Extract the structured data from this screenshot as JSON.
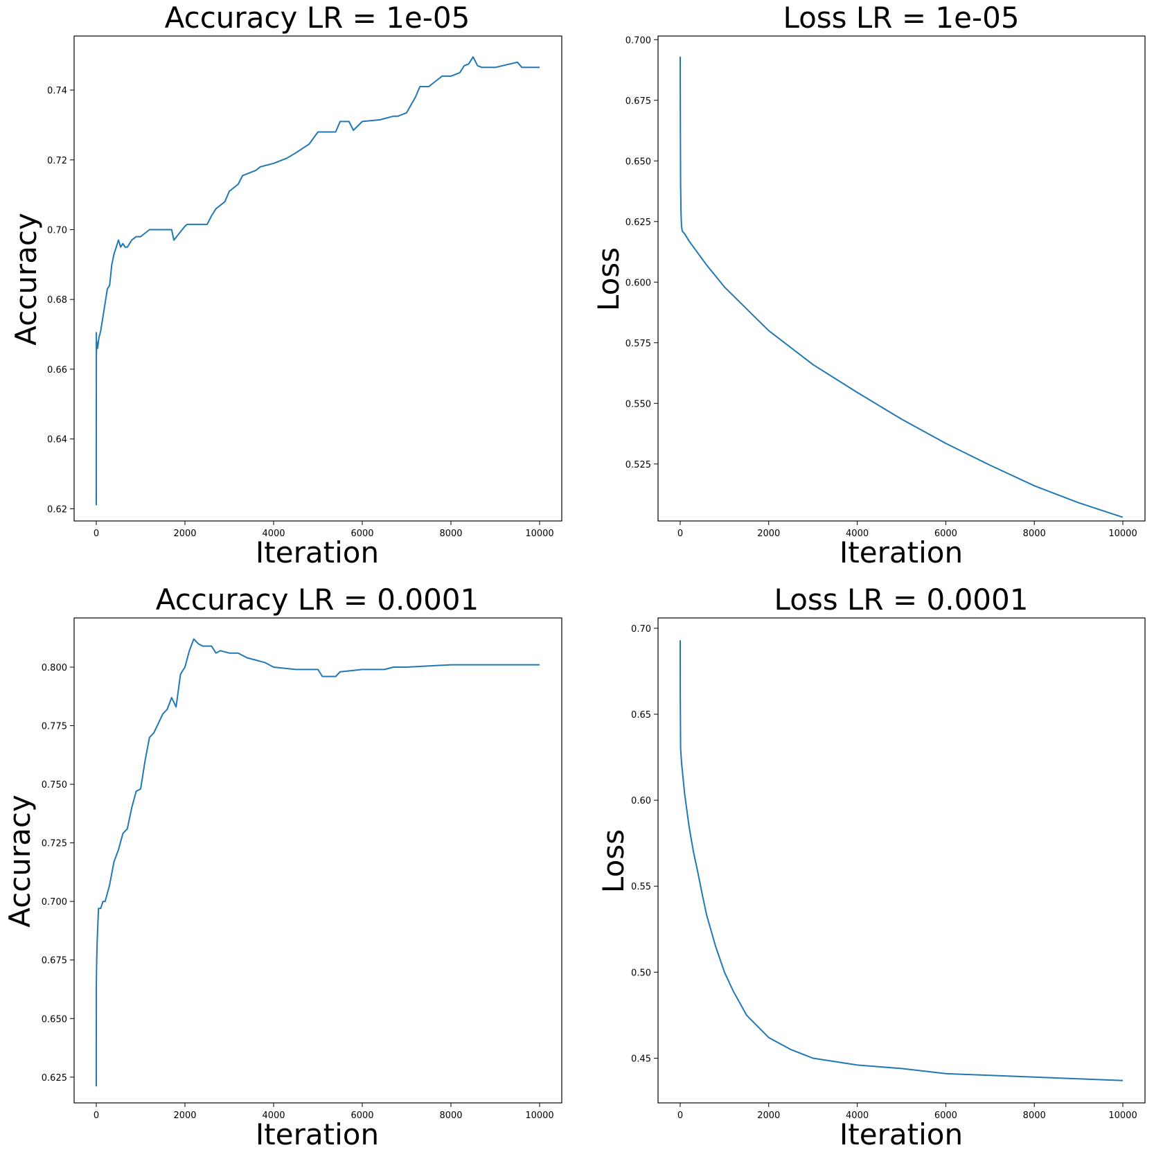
{
  "colors": {
    "line": "#1f77b4",
    "axis": "#000000",
    "background": "#ffffff"
  },
  "chart_data": [
    {
      "type": "line",
      "title": "Accuracy LR = 1e-05",
      "xlabel": "Iteration",
      "ylabel": "Accuracy",
      "xlim": [
        -500,
        10500
      ],
      "ylim": [
        0.6165,
        0.7555
      ],
      "xticks": [
        0,
        2000,
        4000,
        6000,
        8000,
        10000
      ],
      "xtick_labels": [
        "0",
        "2000",
        "4000",
        "6000",
        "8000",
        "10000"
      ],
      "yticks": [
        0.62,
        0.64,
        0.66,
        0.68,
        0.7,
        0.72,
        0.74
      ],
      "ytick_labels": [
        "0.62",
        "0.64",
        "0.66",
        "0.68",
        "0.70",
        "0.72",
        "0.74"
      ],
      "grid": false,
      "series": [
        {
          "x": [
            0,
            1,
            5,
            10,
            30,
            60,
            100,
            150,
            200,
            250,
            300,
            350,
            400,
            450,
            500,
            550,
            600,
            650,
            700,
            800,
            900,
            1000,
            1200,
            1700,
            1750,
            2000,
            2050,
            2500,
            2600,
            2700,
            2900,
            3000,
            3200,
            3300,
            3600,
            3700,
            4000,
            4300,
            4500,
            4800,
            5000,
            5400,
            5500,
            5700,
            5800,
            6000,
            6400,
            6700,
            6800,
            7000,
            7200,
            7300,
            7500,
            7800,
            8000,
            8200,
            8300,
            8400,
            8500,
            8600,
            8700,
            8800,
            9000,
            9500,
            9600,
            10000
          ],
          "y": [
            0.621,
            0.6705,
            0.665,
            0.668,
            0.666,
            0.669,
            0.671,
            0.675,
            0.679,
            0.683,
            0.684,
            0.69,
            0.693,
            0.695,
            0.697,
            0.695,
            0.696,
            0.695,
            0.695,
            0.697,
            0.698,
            0.698,
            0.7,
            0.7,
            0.697,
            0.701,
            0.7015,
            0.7015,
            0.704,
            0.706,
            0.708,
            0.711,
            0.713,
            0.7155,
            0.717,
            0.718,
            0.719,
            0.7205,
            0.722,
            0.7245,
            0.728,
            0.728,
            0.731,
            0.731,
            0.7285,
            0.731,
            0.7315,
            0.7325,
            0.7325,
            0.7335,
            0.738,
            0.741,
            0.741,
            0.744,
            0.744,
            0.745,
            0.747,
            0.7475,
            0.7495,
            0.747,
            0.7465,
            0.7465,
            0.7465,
            0.748,
            0.7465,
            0.7465
          ]
        }
      ]
    },
    {
      "type": "line",
      "title": "Loss LR = 1e-05",
      "xlabel": "Iteration",
      "ylabel": "Loss",
      "xlim": [
        -500,
        10500
      ],
      "ylim": [
        0.5015,
        0.7015
      ],
      "xticks": [
        0,
        2000,
        4000,
        6000,
        8000,
        10000
      ],
      "xtick_labels": [
        "0",
        "2000",
        "4000",
        "6000",
        "8000",
        "10000"
      ],
      "yticks": [
        0.525,
        0.55,
        0.575,
        0.6,
        0.625,
        0.65,
        0.675,
        0.7
      ],
      "ytick_labels": [
        "0.525",
        "0.550",
        "0.575",
        "0.600",
        "0.625",
        "0.650",
        "0.675",
        "0.700"
      ],
      "grid": false,
      "series": [
        {
          "x": [
            0,
            2,
            5,
            10,
            20,
            30,
            50,
            100,
            200,
            400,
            600,
            1000,
            1500,
            2000,
            3000,
            4000,
            5000,
            6000,
            7000,
            8000,
            9000,
            10000
          ],
          "y": [
            0.693,
            0.68,
            0.66,
            0.64,
            0.628,
            0.623,
            0.621,
            0.62,
            0.617,
            0.612,
            0.607,
            0.598,
            0.589,
            0.58,
            0.566,
            0.5545,
            0.5435,
            0.5335,
            0.5245,
            0.516,
            0.509,
            0.503
          ]
        }
      ]
    },
    {
      "type": "line",
      "title": "Accuracy LR = 0.0001",
      "xlabel": "Iteration",
      "ylabel": "Accuracy",
      "xlim": [
        -500,
        10500
      ],
      "ylim": [
        0.614,
        0.821
      ],
      "xticks": [
        0,
        2000,
        4000,
        6000,
        8000,
        10000
      ],
      "xtick_labels": [
        "0",
        "2000",
        "4000",
        "6000",
        "8000",
        "10000"
      ],
      "yticks": [
        0.625,
        0.65,
        0.675,
        0.7,
        0.725,
        0.75,
        0.775,
        0.8
      ],
      "ytick_labels": [
        "0.625",
        "0.650",
        "0.675",
        "0.700",
        "0.725",
        "0.750",
        "0.775",
        "0.800"
      ],
      "grid": false,
      "series": [
        {
          "x": [
            0,
            1,
            10,
            20,
            50,
            100,
            150,
            200,
            300,
            400,
            500,
            600,
            700,
            800,
            900,
            1000,
            1100,
            1200,
            1300,
            1400,
            1500,
            1600,
            1700,
            1800,
            1900,
            2000,
            2100,
            2200,
            2300,
            2400,
            2500,
            2600,
            2700,
            2800,
            3000,
            3200,
            3400,
            3600,
            3800,
            4000,
            4500,
            5000,
            5100,
            5400,
            5500,
            6000,
            6500,
            6700,
            7000,
            8000,
            9000,
            10000
          ],
          "y": [
            0.621,
            0.665,
            0.675,
            0.683,
            0.697,
            0.697,
            0.7,
            0.7,
            0.707,
            0.717,
            0.722,
            0.729,
            0.731,
            0.74,
            0.747,
            0.748,
            0.76,
            0.77,
            0.772,
            0.776,
            0.78,
            0.782,
            0.787,
            0.783,
            0.797,
            0.8,
            0.807,
            0.812,
            0.81,
            0.809,
            0.809,
            0.809,
            0.806,
            0.807,
            0.806,
            0.806,
            0.804,
            0.803,
            0.802,
            0.8,
            0.799,
            0.799,
            0.796,
            0.796,
            0.798,
            0.799,
            0.799,
            0.8,
            0.8,
            0.801,
            0.801,
            0.801
          ]
        }
      ]
    },
    {
      "type": "line",
      "title": "Loss LR = 0.0001",
      "xlabel": "Iteration",
      "ylabel": "Loss",
      "xlim": [
        -500,
        10500
      ],
      "ylim": [
        0.424,
        0.706
      ],
      "xticks": [
        0,
        2000,
        4000,
        6000,
        8000,
        10000
      ],
      "xtick_labels": [
        "0",
        "2000",
        "4000",
        "6000",
        "8000",
        "10000"
      ],
      "yticks": [
        0.45,
        0.5,
        0.55,
        0.6,
        0.65,
        0.7
      ],
      "ytick_labels": [
        "0.45",
        "0.50",
        "0.55",
        "0.60",
        "0.65",
        "0.70"
      ],
      "grid": false,
      "series": [
        {
          "x": [
            0,
            2,
            10,
            30,
            50,
            100,
            200,
            300,
            400,
            500,
            600,
            800,
            1000,
            1200,
            1500,
            2000,
            2500,
            3000,
            4000,
            5000,
            6000,
            7000,
            8000,
            9000,
            10000
          ],
          "y": [
            0.693,
            0.66,
            0.63,
            0.622,
            0.617,
            0.604,
            0.585,
            0.57,
            0.558,
            0.545,
            0.533,
            0.515,
            0.5,
            0.489,
            0.475,
            0.462,
            0.455,
            0.45,
            0.446,
            0.444,
            0.441,
            0.44,
            0.439,
            0.438,
            0.437
          ]
        }
      ]
    }
  ]
}
